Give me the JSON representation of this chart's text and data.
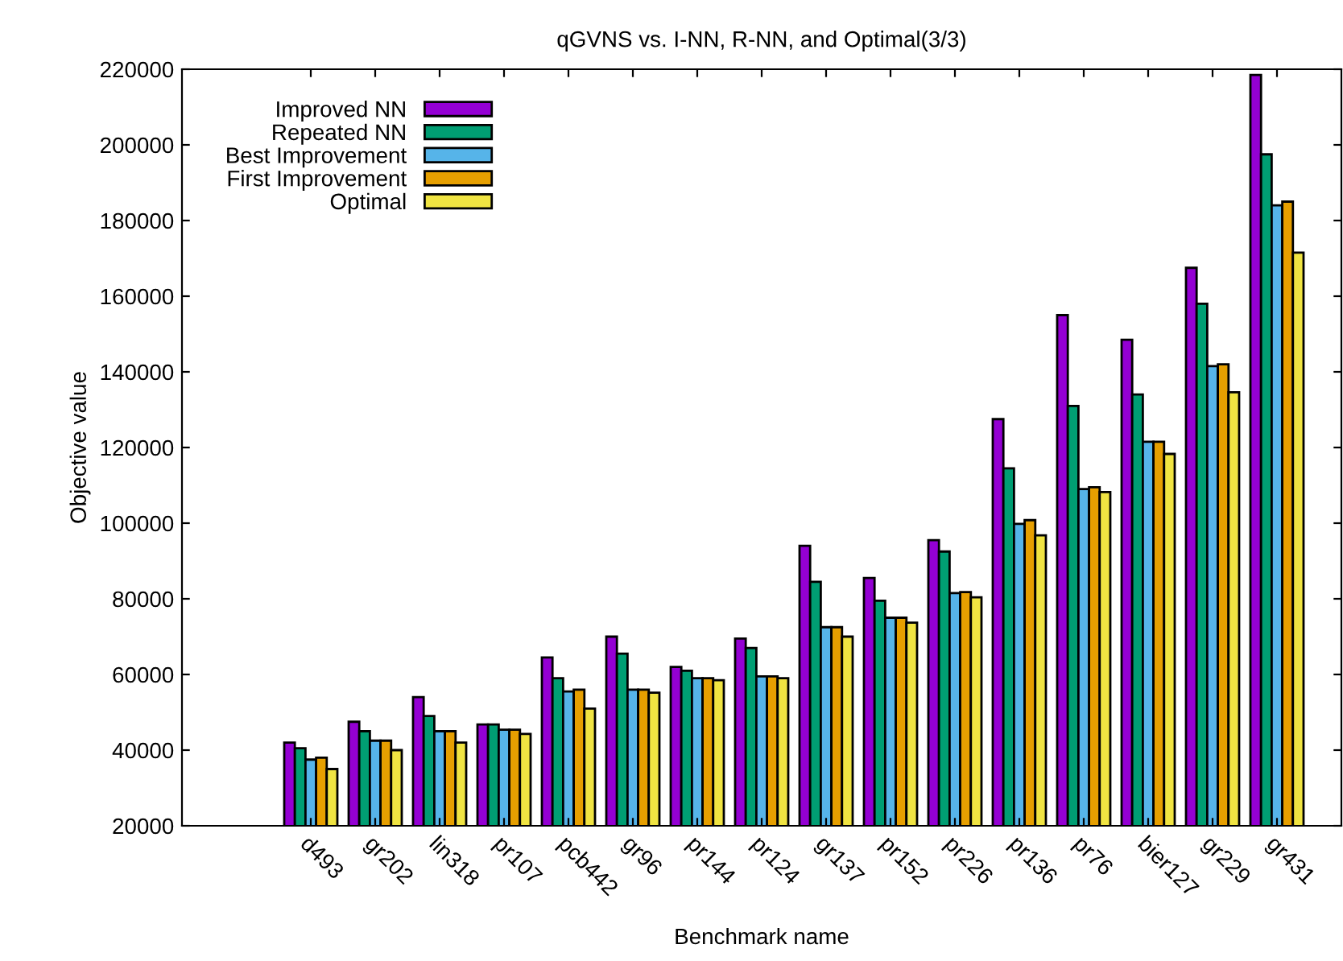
{
  "chart_data": {
    "type": "bar",
    "title": "qGVNS vs. I-NN, R-NN, and Optimal(3/3)",
    "xlabel": "Benchmark name",
    "ylabel": "Objective value",
    "categories": [
      "d493",
      "gr202",
      "lin318",
      "pr107",
      "pcb442",
      "gr96",
      "pr144",
      "pr124",
      "gr137",
      "pr152",
      "pr226",
      "pr136",
      "pr76",
      "bier127",
      "gr229",
      "gr431"
    ],
    "series": [
      {
        "name": "Improved NN",
        "color": "#9400d3",
        "values": [
          42000,
          47500,
          54000,
          46800,
          64500,
          70000,
          62000,
          69500,
          94000,
          85500,
          95500,
          127500,
          155000,
          148500,
          167500,
          218500
        ]
      },
      {
        "name": "Repeated NN",
        "color": "#009e73",
        "values": [
          40500,
          45000,
          49000,
          46800,
          59000,
          65500,
          61000,
          67000,
          84500,
          79500,
          92500,
          114500,
          131000,
          134000,
          158000,
          197500
        ]
      },
      {
        "name": "Best Improvement",
        "color": "#56b4e9",
        "values": [
          37500,
          42500,
          45000,
          45400,
          55500,
          56000,
          59000,
          59500,
          72500,
          75000,
          81500,
          99800,
          109000,
          121500,
          141500,
          184000
        ]
      },
      {
        "name": "First Improvement",
        "color": "#e69f00",
        "values": [
          38000,
          42500,
          45000,
          45400,
          56000,
          56000,
          59000,
          59500,
          72500,
          75000,
          81800,
          100800,
          109500,
          121500,
          142000,
          185000
        ]
      },
      {
        "name": "Optimal",
        "color": "#f0e442",
        "values": [
          35000,
          40000,
          42000,
          44300,
          51000,
          55200,
          58500,
          59000,
          70000,
          73700,
          80400,
          96800,
          108200,
          118300,
          134600,
          171500
        ]
      }
    ],
    "ylim": [
      20000,
      220000
    ],
    "yticks": [
      20000,
      40000,
      60000,
      80000,
      100000,
      120000,
      140000,
      160000,
      180000,
      200000,
      220000
    ],
    "legend": "top left",
    "grid": false
  }
}
